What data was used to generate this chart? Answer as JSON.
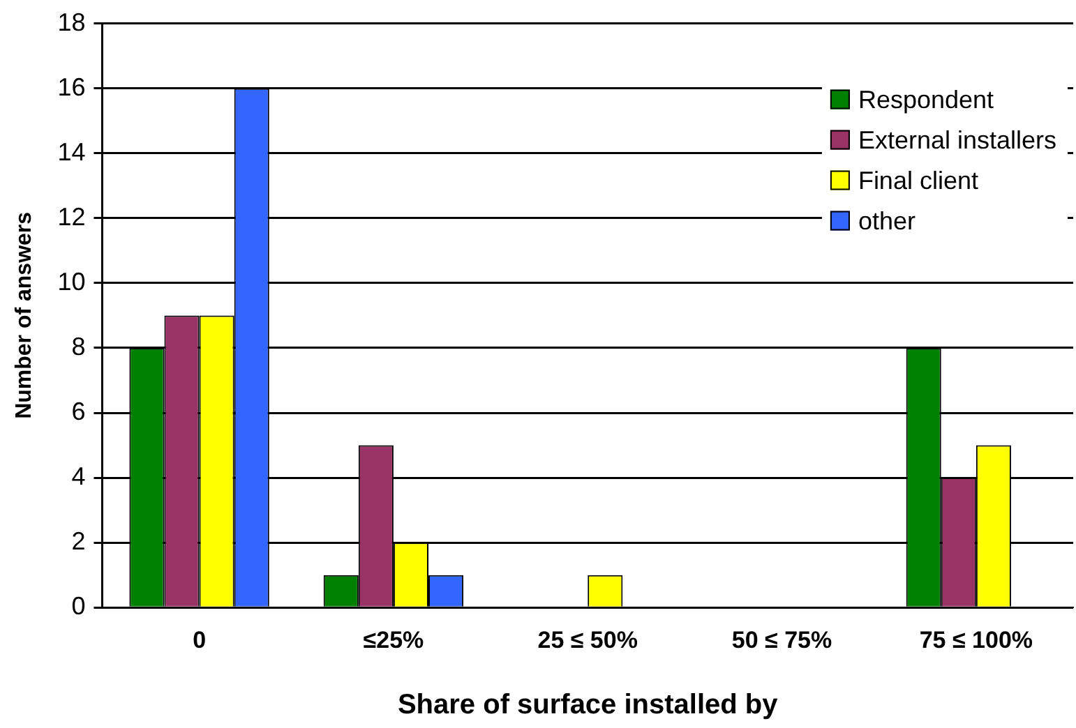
{
  "chart_data": {
    "type": "bar",
    "xlabel": "Share of surface installed by",
    "ylabel": "Number of answers",
    "categories": [
      "0",
      "≤25%",
      "25 ≤ 50%",
      "50 ≤ 75%",
      "75 ≤ 100%"
    ],
    "series": [
      {
        "name": "Respondent",
        "color": "#008000",
        "values": [
          8,
          1,
          0,
          0,
          8
        ]
      },
      {
        "name": "External installers",
        "color": "#993366",
        "values": [
          9,
          5,
          0,
          0,
          4
        ]
      },
      {
        "name": "Final client",
        "color": "#ffff00",
        "values": [
          9,
          2,
          1,
          0,
          5
        ]
      },
      {
        "name": "other",
        "color": "#3366ff",
        "values": [
          16,
          1,
          0,
          0,
          0
        ]
      }
    ],
    "ylim": [
      0,
      18
    ],
    "yticks": [
      0,
      2,
      4,
      6,
      8,
      10,
      12,
      14,
      16,
      18
    ],
    "grid": "y",
    "legend": "top right"
  }
}
